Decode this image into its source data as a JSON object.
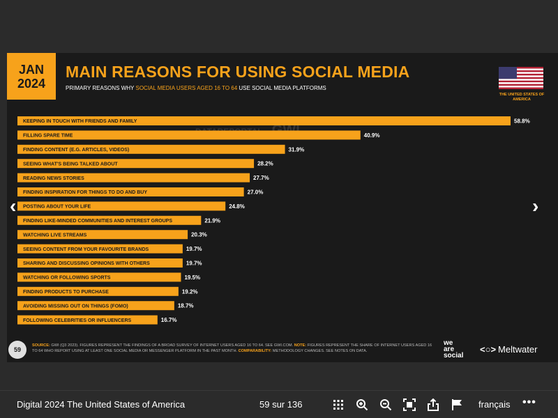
{
  "slide": {
    "date_month": "JAN",
    "date_year": "2024",
    "title": "MAIN REASONS FOR USING SOCIAL MEDIA",
    "subtitle_prefix": "PRIMARY REASONS WHY",
    "subtitle_highlight": "SOCIAL MEDIA USERS AGED 16 TO 64",
    "subtitle_suffix": "USE SOCIAL MEDIA PLATFORMS",
    "flag_label": "THE UNITED STATES OF AMERICA",
    "watermark_left": "DATAREPORTAL",
    "watermark_right": "GWI.",
    "page_number": "59",
    "source_label": "SOURCE:",
    "source_text": "GWI (Q3 2023). FIGURES REPRESENT THE FINDINGS OF A BROAD SURVEY OF INTERNET USERS AGED 16 TO 64. SEE GWI.COM.",
    "note_label": "NOTE:",
    "note_text": "FIGURES REPRESENT THE SHARE OF INTERNET USERS AGED 16 TO 64 WHO REPORT USING AT LEAST ONE SOCIAL MEDIA OR MESSENGER PLATFORM IN THE PAST MONTH.",
    "comparability_label": "COMPARABILITY:",
    "comparability_text": "METHODOLOGY CHANGES. SEE NOTES ON DATA.",
    "brand_was_1": "we",
    "brand_was_2": "are",
    "brand_was_3": "social",
    "brand_meltwater": "Meltwater",
    "colors": {
      "accent": "#f7a21b",
      "background": "#1a1a1a"
    }
  },
  "chart_data": {
    "type": "bar",
    "orientation": "horizontal",
    "categories": [
      "KEEPING IN TOUCH WITH FRIENDS AND FAMILY",
      "FILLING SPARE TIME",
      "FINDING CONTENT (E.G. ARTICLES, VIDEOS)",
      "SEEING WHAT'S BEING TALKED ABOUT",
      "READING NEWS STORIES",
      "FINDING INSPIRATION FOR THINGS TO DO AND BUY",
      "POSTING ABOUT YOUR LIFE",
      "FINDING LIKE-MINDED COMMUNITIES AND INTEREST GROUPS",
      "WATCHING LIVE STREAMS",
      "SEEING CONTENT FROM YOUR FAVOURITE BRANDS",
      "SHARING AND DISCUSSING OPINIONS WITH OTHERS",
      "WATCHING OR FOLLOWING SPORTS",
      "FINDING PRODUCTS TO PURCHASE",
      "AVOIDING MISSING OUT ON THINGS (FOMO)",
      "FOLLOWING CELEBRITIES OR INFLUENCERS"
    ],
    "values": [
      58.8,
      40.9,
      31.9,
      28.2,
      27.7,
      27.0,
      24.8,
      21.9,
      20.3,
      19.7,
      19.7,
      19.5,
      19.2,
      18.7,
      16.7
    ],
    "value_labels": [
      "58.8%",
      "40.9%",
      "31.9%",
      "28.2%",
      "27.7%",
      "27.0%",
      "24.8%",
      "21.9%",
      "20.3%",
      "19.7%",
      "19.7%",
      "19.5%",
      "19.2%",
      "18.7%",
      "16.7%"
    ],
    "xlim": [
      0,
      58.8
    ],
    "grid": false,
    "bar_color": "#f7a21b"
  },
  "navigation": {
    "prev_icon": "chevron-left-icon",
    "next_icon": "chevron-right-icon"
  },
  "toolbar": {
    "document_title": "Digital 2024 The United States of America",
    "page_counter": "59 sur 136",
    "icons": [
      "grid-icon",
      "zoom-in-icon",
      "zoom-out-icon",
      "fullscreen-icon",
      "share-icon",
      "flag-icon"
    ],
    "language": "français",
    "more_label": "•••"
  }
}
